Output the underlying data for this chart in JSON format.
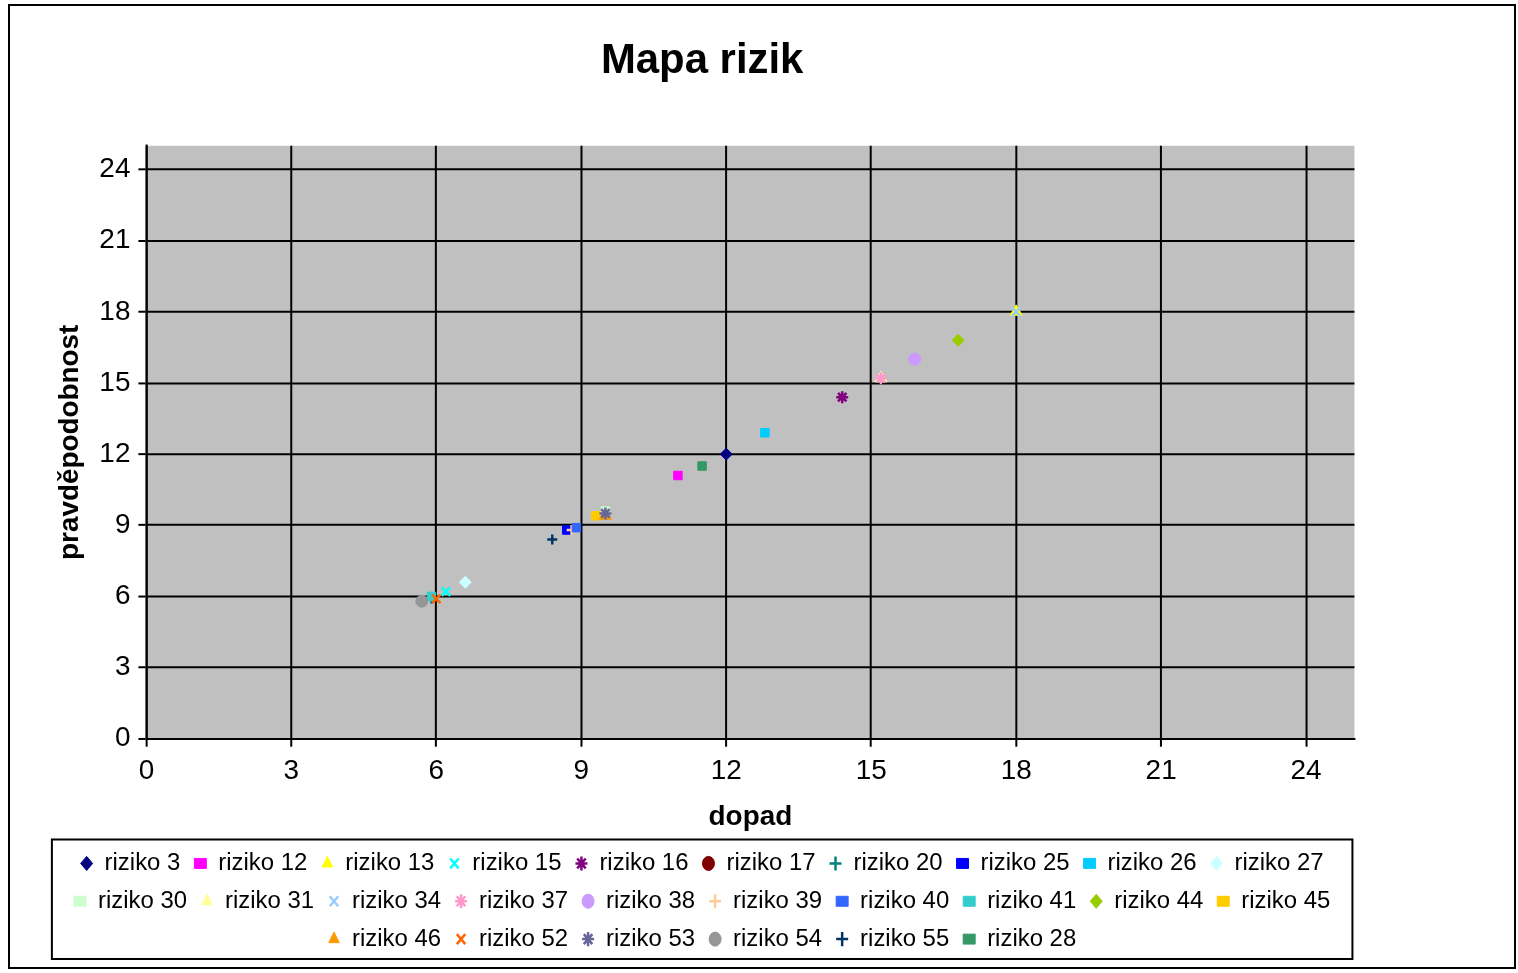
{
  "chart_data": {
    "type": "scatter",
    "title": "Mapa rizik",
    "xlabel": "dopad",
    "ylabel": "pravděpodobnost",
    "xlim": [
      0,
      25
    ],
    "ylim": [
      0,
      25
    ],
    "xticks": [
      0,
      3,
      6,
      9,
      12,
      15,
      18,
      21,
      24
    ],
    "yticks": [
      0,
      3,
      6,
      9,
      12,
      15,
      18,
      21,
      24
    ],
    "grid": true,
    "legend": "bottom",
    "series": [
      {
        "name": "riziko 3",
        "color": "#000080",
        "marker": "diamond",
        "x": [
          12
        ],
        "values": [
          12
        ]
      },
      {
        "name": "riziko 12",
        "color": "#ff00ff",
        "marker": "square",
        "x": [
          11
        ],
        "values": [
          11.1
        ]
      },
      {
        "name": "riziko 13",
        "color": "#ffff00",
        "marker": "triangle",
        "x": [
          18
        ],
        "values": [
          18
        ]
      },
      {
        "name": "riziko 15",
        "color": "#00ffff",
        "marker": "x",
        "x": [
          6.2
        ],
        "values": [
          6.2
        ]
      },
      {
        "name": "riziko 16",
        "color": "#800080",
        "marker": "cross",
        "x": [
          14.4
        ],
        "values": [
          14.4
        ]
      },
      {
        "name": "riziko 17",
        "color": "#800000",
        "marker": "circle",
        "x": [
          null
        ],
        "values": [
          null
        ]
      },
      {
        "name": "riziko 20",
        "color": "#008080",
        "marker": "plus",
        "x": [
          5.9
        ],
        "values": [
          5.9
        ]
      },
      {
        "name": "riziko 25",
        "color": "#0000ff",
        "marker": "square",
        "x": [
          8.7
        ],
        "values": [
          8.8
        ]
      },
      {
        "name": "riziko 26",
        "color": "#00ccff",
        "marker": "square",
        "x": [
          12.8
        ],
        "values": [
          12.9
        ]
      },
      {
        "name": "riziko 27",
        "color": "#ccffff",
        "marker": "diamond",
        "x": [
          6.6
        ],
        "values": [
          6.6
        ]
      },
      {
        "name": "riziko 30",
        "color": "#ccffcc",
        "marker": "square",
        "x": [
          9.5
        ],
        "values": [
          9.6
        ]
      },
      {
        "name": "riziko 31",
        "color": "#ffff99",
        "marker": "triangle",
        "x": [
          15.2
        ],
        "values": [
          15.2
        ]
      },
      {
        "name": "riziko 34",
        "color": "#99ccff",
        "marker": "x",
        "x": [
          18
        ],
        "values": [
          18
        ]
      },
      {
        "name": "riziko 37",
        "color": "#ff99cc",
        "marker": "cross",
        "x": [
          15.2
        ],
        "values": [
          15.2
        ]
      },
      {
        "name": "riziko 38",
        "color": "#cc99ff",
        "marker": "circle",
        "x": [
          15.9
        ],
        "values": [
          16
        ]
      },
      {
        "name": "riziko 39",
        "color": "#ffcc99",
        "marker": "plus",
        "x": [
          8.8
        ],
        "values": [
          8.8
        ]
      },
      {
        "name": "riziko 40",
        "color": "#3366ff",
        "marker": "square",
        "x": [
          8.9
        ],
        "values": [
          8.9
        ]
      },
      {
        "name": "riziko 41",
        "color": "#33cccc",
        "marker": "square",
        "x": [
          5.9
        ],
        "values": [
          6
        ]
      },
      {
        "name": "riziko 44",
        "color": "#99cc00",
        "marker": "diamond",
        "x": [
          16.8
        ],
        "values": [
          16.8
        ]
      },
      {
        "name": "riziko 45",
        "color": "#ffcc00",
        "marker": "square",
        "x": [
          9.3
        ],
        "values": [
          9.4
        ]
      },
      {
        "name": "riziko 46",
        "color": "#ff9900",
        "marker": "triangle",
        "x": [
          9.5
        ],
        "values": [
          9.4
        ]
      },
      {
        "name": "riziko 52",
        "color": "#ff6600",
        "marker": "x",
        "x": [
          6
        ],
        "values": [
          5.9
        ]
      },
      {
        "name": "riziko 53",
        "color": "#666699",
        "marker": "cross",
        "x": [
          9.5
        ],
        "values": [
          9.5
        ]
      },
      {
        "name": "riziko 54",
        "color": "#969696",
        "marker": "circle",
        "x": [
          5.7
        ],
        "values": [
          5.8
        ]
      },
      {
        "name": "riziko 55",
        "color": "#003366",
        "marker": "plus",
        "x": [
          8.4
        ],
        "values": [
          8.4
        ]
      },
      {
        "name": "riziko 28",
        "color": "#339966",
        "marker": "square",
        "x": [
          11.5
        ],
        "values": [
          11.5
        ]
      }
    ]
  }
}
